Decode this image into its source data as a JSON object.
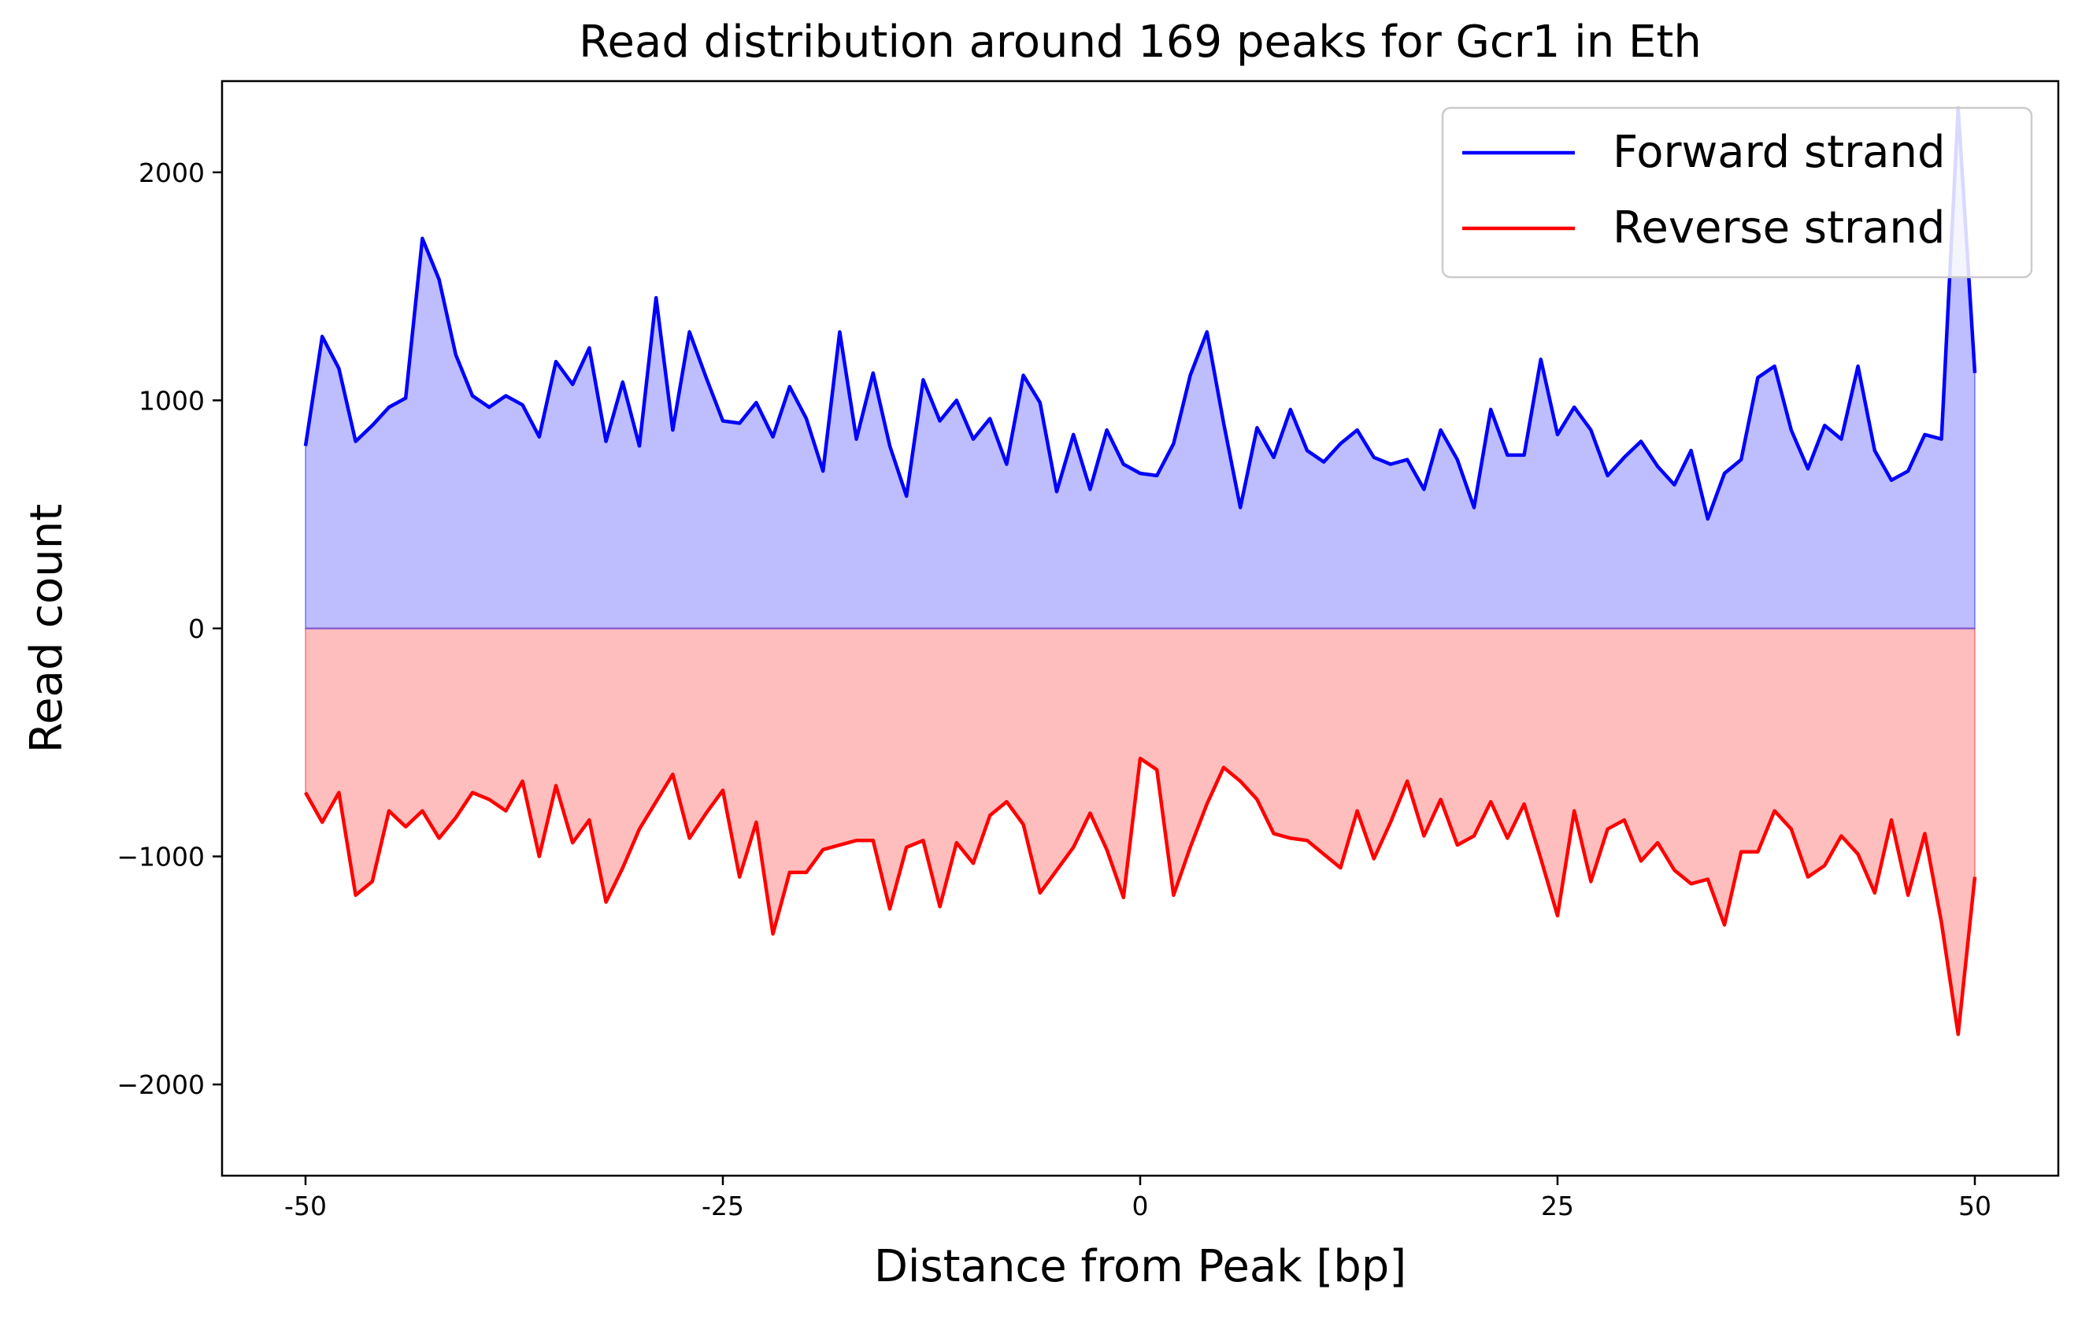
{
  "chart_data": {
    "type": "area",
    "title": "Read distribution around 169 peaks for Gcr1 in Eth",
    "xlabel": "Distance from Peak [bp]",
    "ylabel": "Read count",
    "xlim": [
      -55,
      55
    ],
    "ylim": [
      -2400,
      2400
    ],
    "xticks": [
      -50,
      -25,
      0,
      25,
      50
    ],
    "xtick_labels": [
      "-50",
      "-25",
      "0",
      "25",
      "50"
    ],
    "yticks": [
      -2000,
      -1000,
      0,
      1000,
      2000
    ],
    "ytick_labels": [
      "−2000",
      "−1000",
      "0",
      "1000",
      "2000"
    ],
    "grid": false,
    "legend_position": "top-right",
    "x": [
      -50,
      -49,
      -48,
      -47,
      -46,
      -45,
      -44,
      -43,
      -42,
      -41,
      -40,
      -39,
      -38,
      -37,
      -36,
      -35,
      -34,
      -33,
      -32,
      -31,
      -30,
      -29,
      -28,
      -27,
      -26,
      -25,
      -24,
      -23,
      -22,
      -21,
      -20,
      -19,
      -18,
      -17,
      -16,
      -15,
      -14,
      -13,
      -12,
      -11,
      -10,
      -9,
      -8,
      -7,
      -6,
      -5,
      -4,
      -3,
      -2,
      -1,
      0,
      1,
      2,
      3,
      4,
      5,
      6,
      7,
      8,
      9,
      10,
      11,
      12,
      13,
      14,
      15,
      16,
      17,
      18,
      19,
      20,
      21,
      22,
      23,
      24,
      25,
      26,
      27,
      28,
      29,
      30,
      31,
      32,
      33,
      34,
      35,
      36,
      37,
      38,
      39,
      40,
      41,
      42,
      43,
      44,
      45,
      46,
      47,
      48,
      49,
      50
    ],
    "series": [
      {
        "name": "Forward strand",
        "color": "#0000ff",
        "fill": "#bebeff",
        "values": [
          800,
          1280,
          1140,
          820,
          890,
          970,
          1010,
          1710,
          1530,
          1200,
          1020,
          970,
          1020,
          980,
          840,
          1170,
          1070,
          1230,
          820,
          1080,
          800,
          1450,
          870,
          1300,
          1100,
          910,
          900,
          990,
          840,
          1060,
          920,
          690,
          1300,
          830,
          1120,
          800,
          580,
          1090,
          910,
          1000,
          830,
          920,
          720,
          1110,
          990,
          600,
          850,
          610,
          870,
          720,
          680,
          670,
          810,
          1110,
          1300,
          900,
          530,
          880,
          750,
          960,
          780,
          730,
          810,
          870,
          750,
          720,
          740,
          610,
          870,
          740,
          530,
          960,
          760,
          760,
          1180,
          850,
          970,
          870,
          670,
          750,
          820,
          710,
          630,
          780,
          480,
          680,
          740,
          1100,
          1150,
          870,
          700,
          890,
          830,
          1150,
          780,
          650,
          690,
          850,
          830,
          2280,
          1120
        ]
      },
      {
        "name": "Reverse strand",
        "color": "#ff0000",
        "fill": "#ffbebe",
        "values": [
          -720,
          -850,
          -720,
          -1170,
          -1110,
          -800,
          -870,
          -800,
          -920,
          -830,
          -720,
          -750,
          -800,
          -670,
          -1000,
          -690,
          -940,
          -840,
          -1200,
          -1050,
          -880,
          -760,
          -640,
          -920,
          -810,
          -710,
          -1090,
          -850,
          -1340,
          -1070,
          -1070,
          -970,
          -950,
          -930,
          -930,
          -1230,
          -960,
          -930,
          -1220,
          -940,
          -1030,
          -820,
          -760,
          -860,
          -1160,
          -1060,
          -960,
          -810,
          -970,
          -1180,
          -570,
          -620,
          -1170,
          -960,
          -770,
          -610,
          -670,
          -750,
          -900,
          -920,
          -930,
          -990,
          -1050,
          -800,
          -1010,
          -850,
          -670,
          -910,
          -750,
          -950,
          -910,
          -760,
          -920,
          -770,
          -1010,
          -1260,
          -800,
          -1110,
          -880,
          -840,
          -1020,
          -940,
          -1060,
          -1120,
          -1100,
          -1300,
          -980,
          -980,
          -800,
          -880,
          -1090,
          -1040,
          -910,
          -990,
          -1160,
          -840,
          -1170,
          -900,
          -1290,
          -1780,
          -1090
        ]
      }
    ]
  }
}
